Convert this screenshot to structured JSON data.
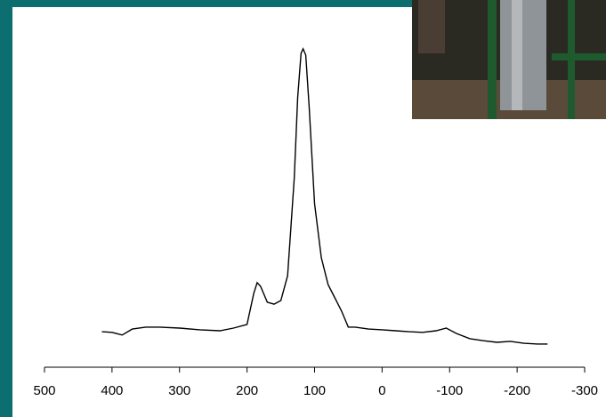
{
  "chart_data": {
    "type": "line",
    "x": [
      415,
      400,
      385,
      370,
      350,
      330,
      300,
      270,
      240,
      220,
      200,
      190,
      185,
      180,
      170,
      160,
      150,
      140,
      130,
      125,
      120,
      117,
      113,
      108,
      100,
      90,
      80,
      70,
      60,
      50,
      40,
      20,
      0,
      -20,
      -40,
      -60,
      -80,
      -95,
      -110,
      -130,
      -150,
      -170,
      -190,
      -210,
      -230,
      -245
    ],
    "series": [
      {
        "color": "#000000",
        "values": [
          10.7,
          10.5,
          9.7,
          11.5,
          12.1,
          12.1,
          11.8,
          11.3,
          11.0,
          11.8,
          12.9,
          22.3,
          25.5,
          24.4,
          19.6,
          19.0,
          20.1,
          27.6,
          57.1,
          81.2,
          94.6,
          96.0,
          94.1,
          78.6,
          49.3,
          33.0,
          24.9,
          20.9,
          16.9,
          12.1,
          12.1,
          11.5,
          11.3,
          11.0,
          10.7,
          10.5,
          11.0,
          11.8,
          10.2,
          8.6,
          8.0,
          7.5,
          7.8,
          7.2,
          7.0,
          7.0
        ]
      }
    ],
    "xlim": [
      500,
      -300
    ],
    "xticks": [
      500,
      400,
      300,
      200,
      100,
      0,
      -100,
      -200,
      -300
    ],
    "ylim": [
      0,
      100
    ]
  }
}
